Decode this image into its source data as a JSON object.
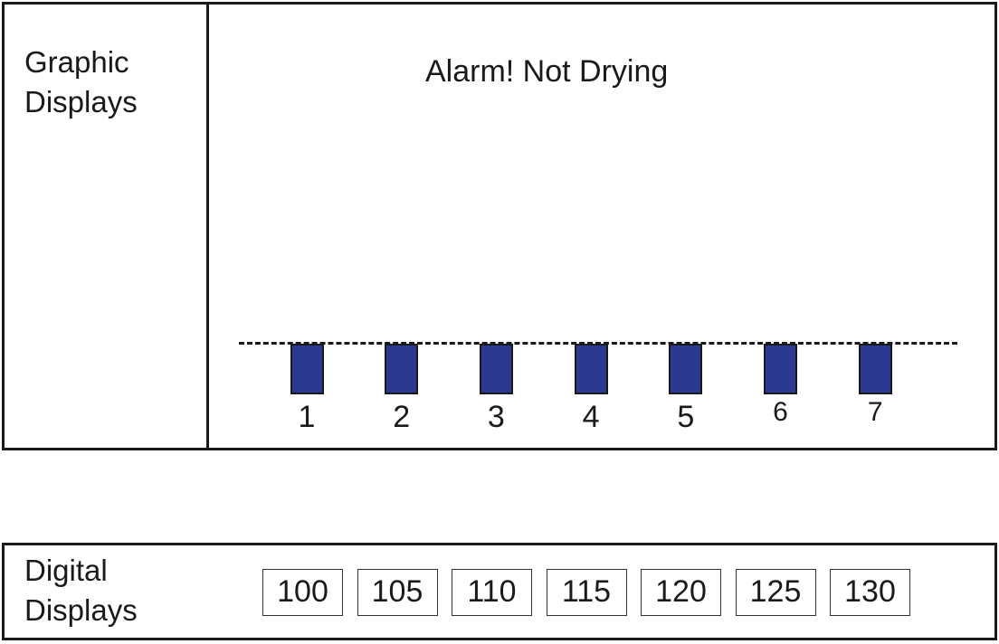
{
  "graphic_displays": {
    "label": "Graphic\nDisplays",
    "alarm_title": "Alarm! Not Drying",
    "sensors": [
      {
        "number": "1"
      },
      {
        "number": "2"
      },
      {
        "number": "3"
      },
      {
        "number": "4"
      },
      {
        "number": "5"
      },
      {
        "number": "6"
      },
      {
        "number": "7"
      }
    ],
    "bar_color": "#2b3990"
  },
  "digital_displays": {
    "label": "Digital\nDisplays",
    "readouts": [
      "100",
      "105",
      "110",
      "115",
      "120",
      "125",
      "130"
    ]
  }
}
